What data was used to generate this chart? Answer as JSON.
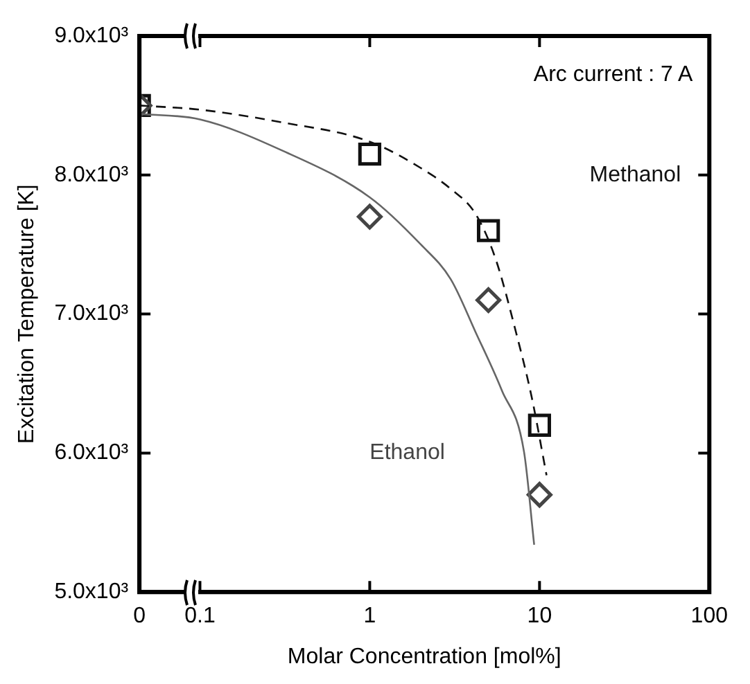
{
  "chart_data": {
    "type": "scatter",
    "xlabel": "Molar Concentration [mol%]",
    "ylabel": "Excitation Temperature [K]",
    "log": "x",
    "xlim": [
      0.044,
      100
    ],
    "xticks": [
      {
        "value": 0.044,
        "label": "0"
      },
      0.1,
      1,
      10,
      100
    ],
    "ylim": [
      5000,
      9000
    ],
    "yticks": [
      {
        "value": 5000,
        "label": "5.0x10³"
      },
      {
        "value": 6000,
        "label": "6.0x10³"
      },
      {
        "value": 7000,
        "label": "7.0x10³"
      },
      {
        "value": 8000,
        "label": "8.0x10³"
      },
      {
        "value": 9000,
        "label": "9.0x10³"
      }
    ],
    "grid": false,
    "legend": false,
    "series": [
      {
        "name": "Methanol",
        "marker": "square",
        "color": "#111111",
        "x": [
          0.044,
          1,
          5,
          10
        ],
        "values": [
          8500,
          8150,
          7600,
          6200
        ]
      },
      {
        "name": "Ethanol",
        "marker": "diamond",
        "color": "#444444",
        "x": [
          0.044,
          1,
          5,
          10
        ],
        "values": [
          8500,
          7700,
          7100,
          5700
        ]
      },
      {
        "type": "line",
        "marker": "none",
        "line_style": "dashed",
        "color": "#111111",
        "x": [
          0.044,
          0.1,
          0.3,
          1,
          2,
          3,
          4.2,
          5.5,
          7.3,
          9,
          11
        ],
        "values": [
          8500,
          8470,
          8380,
          8240,
          8050,
          7900,
          7720,
          7400,
          6860,
          6400,
          5840
        ]
      },
      {
        "type": "line",
        "marker": "none",
        "line_style": "solid",
        "color": "#666666",
        "x": [
          0.044,
          0.1,
          0.3,
          1,
          2,
          3,
          4.2,
          6,
          8.1,
          9.3
        ],
        "values": [
          8440,
          8400,
          8180,
          7840,
          7500,
          7250,
          6870,
          6450,
          6010,
          5340
        ]
      }
    ],
    "annotations": [
      "Arc current : 7 A"
    ]
  }
}
